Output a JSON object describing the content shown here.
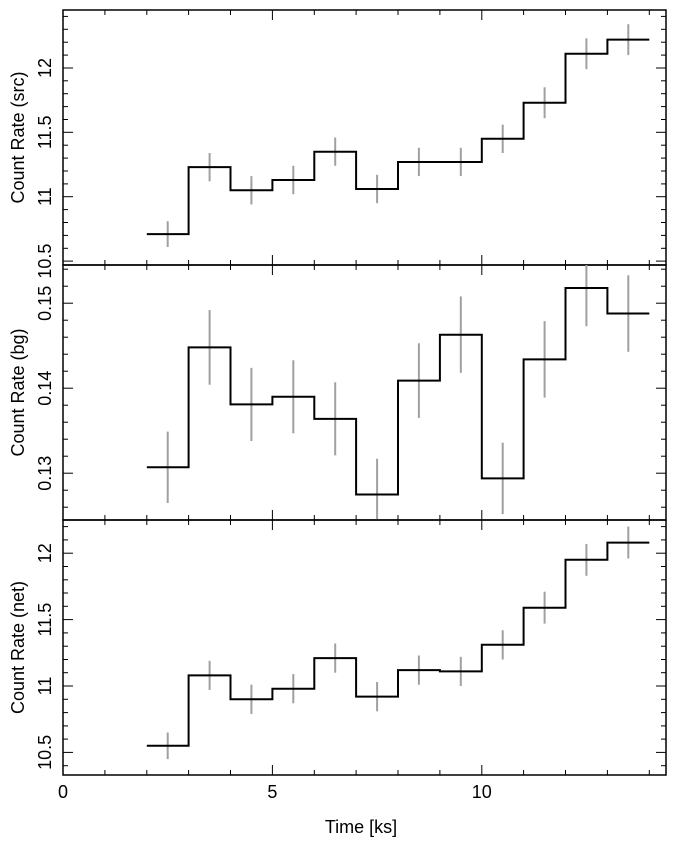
{
  "chart_data": [
    {
      "type": "line",
      "style": "step-histogram-with-error-bars",
      "ylabel": "Count Rate (src)",
      "ylim": [
        10.47,
        12.45
      ],
      "yticks": [
        10.5,
        11,
        11.5,
        12
      ],
      "ytick_labels": [
        "10.5",
        "11",
        "11.5",
        "12"
      ],
      "bin_edges": [
        2,
        3,
        4,
        5,
        6,
        7,
        8,
        9,
        10,
        11,
        12,
        13,
        14
      ],
      "values": [
        10.71,
        11.23,
        11.05,
        11.13,
        11.35,
        11.06,
        11.27,
        11.27,
        11.45,
        11.73,
        12.11,
        12.22
      ],
      "errors": [
        0.1,
        0.11,
        0.11,
        0.11,
        0.11,
        0.11,
        0.11,
        0.11,
        0.11,
        0.12,
        0.12,
        0.12
      ]
    },
    {
      "type": "line",
      "style": "step-histogram-with-error-bars",
      "ylabel": "Count Rate (bg)",
      "ylim": [
        0.1245,
        0.1545
      ],
      "yticks": [
        0.13,
        0.14,
        0.15
      ],
      "ytick_labels": [
        "0.13",
        "0.14",
        "0.15"
      ],
      "bin_edges": [
        2,
        3,
        4,
        5,
        6,
        7,
        8,
        9,
        10,
        11,
        12,
        13,
        14
      ],
      "values": [
        0.1307,
        0.1448,
        0.1381,
        0.139,
        0.1364,
        0.1275,
        0.1409,
        0.1463,
        0.1294,
        0.1434,
        0.1518,
        0.1488
      ],
      "errors": [
        0.0042,
        0.0044,
        0.0043,
        0.0043,
        0.0043,
        0.0042,
        0.0044,
        0.0045,
        0.0042,
        0.0045,
        0.0045,
        0.0045
      ]
    },
    {
      "type": "line",
      "style": "step-histogram-with-error-bars",
      "ylabel": "Count Rate (net)",
      "ylim": [
        10.33,
        12.25
      ],
      "yticks": [
        10.5,
        11,
        11.5,
        12
      ],
      "ytick_labels": [
        "10.5",
        "11",
        "11.5",
        "12"
      ],
      "bin_edges": [
        2,
        3,
        4,
        5,
        6,
        7,
        8,
        9,
        10,
        11,
        12,
        13,
        14
      ],
      "values": [
        10.55,
        11.08,
        10.9,
        10.98,
        11.21,
        10.92,
        11.12,
        11.11,
        11.31,
        11.59,
        11.95,
        12.08
      ],
      "errors": [
        0.1,
        0.11,
        0.11,
        0.11,
        0.11,
        0.11,
        0.11,
        0.11,
        0.11,
        0.12,
        0.12,
        0.12
      ]
    }
  ],
  "xaxis": {
    "label": "Time [ks]",
    "xlim": [
      0,
      14.4
    ],
    "major_ticks": [
      0,
      5,
      10
    ],
    "tick_labels": [
      "0",
      "5",
      "10"
    ]
  },
  "colors": {
    "histogram": "#000000",
    "error_bars": "#a0a0a0",
    "frame": "#000000"
  }
}
